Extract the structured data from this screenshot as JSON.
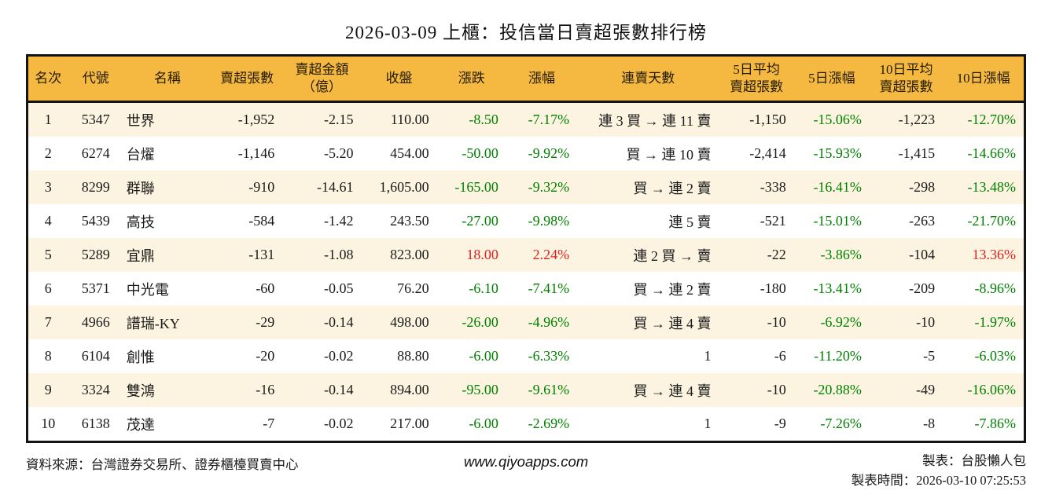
{
  "title": "2026-03-09 上櫃：投信當日賣超張數排行榜",
  "colors": {
    "header_bg": "#F5B942",
    "row_alt_bg": "#FCF4E1",
    "row_bg": "#FFFFFF",
    "up_red": "#E01F1F",
    "down_green": "#008000",
    "border": "#141414"
  },
  "table": {
    "header_labels": [
      "名次",
      "代號",
      "名稱",
      "賣超張數",
      "賣超金額\n（億）",
      "收盤",
      "漲跌",
      "漲幅",
      "連賣天數",
      "5日平均\n賣超張數",
      "5日漲幅",
      "10日平均\n賣超張數",
      "10日漲幅"
    ]
  },
  "chart_data": {
    "type": "table",
    "title": "2026-03-09 上櫃：投信當日賣超張數排行榜",
    "columns": [
      "名次",
      "代號",
      "名稱",
      "賣超張數",
      "賣超金額（億）",
      "收盤",
      "漲跌",
      "漲幅",
      "連賣天數",
      "5日平均賣超張數",
      "5日漲幅",
      "10日平均賣超張數",
      "10日漲幅"
    ],
    "rows": [
      [
        "1",
        "5347",
        "世界",
        "-1,952",
        "-2.15",
        "110.00",
        "-8.50",
        "-7.17%",
        "連 3 買 → 連 11 賣",
        "-1,150",
        "-15.06%",
        "-1,223",
        "-12.70%"
      ],
      [
        "2",
        "6274",
        "台燿",
        "-1,146",
        "-5.20",
        "454.00",
        "-50.00",
        "-9.92%",
        "買 → 連 10 賣",
        "-2,414",
        "-15.93%",
        "-1,415",
        "-14.66%"
      ],
      [
        "3",
        "8299",
        "群聯",
        "-910",
        "-14.61",
        "1,605.00",
        "-165.00",
        "-9.32%",
        "買 → 連 2 賣",
        "-338",
        "-16.41%",
        "-298",
        "-13.48%"
      ],
      [
        "4",
        "5439",
        "高技",
        "-584",
        "-1.42",
        "243.50",
        "-27.00",
        "-9.98%",
        "連 5 賣",
        "-521",
        "-15.01%",
        "-263",
        "-21.70%"
      ],
      [
        "5",
        "5289",
        "宜鼎",
        "-131",
        "-1.08",
        "823.00",
        "18.00",
        "2.24%",
        "連 2 買 → 賣",
        "-22",
        "-3.86%",
        "-104",
        "13.36%"
      ],
      [
        "6",
        "5371",
        "中光電",
        "-60",
        "-0.05",
        "76.20",
        "-6.10",
        "-7.41%",
        "買 → 連 2 賣",
        "-180",
        "-13.41%",
        "-209",
        "-8.96%"
      ],
      [
        "7",
        "4966",
        "譜瑞-KY",
        "-29",
        "-0.14",
        "498.00",
        "-26.00",
        "-4.96%",
        "買 → 連 4 賣",
        "-10",
        "-6.92%",
        "-10",
        "-1.97%"
      ],
      [
        "8",
        "6104",
        "創惟",
        "-20",
        "-0.02",
        "88.80",
        "-6.00",
        "-6.33%",
        "1",
        "-6",
        "-11.20%",
        "-5",
        "-6.03%"
      ],
      [
        "9",
        "3324",
        "雙鴻",
        "-16",
        "-0.14",
        "894.00",
        "-95.00",
        "-9.61%",
        "買 → 連 4 賣",
        "-10",
        "-20.88%",
        "-49",
        "-16.06%"
      ],
      [
        "10",
        "6138",
        "茂達",
        "-7",
        "-0.02",
        "217.00",
        "-6.00",
        "-2.69%",
        "1",
        "-9",
        "-7.26%",
        "-8",
        "-7.86%"
      ]
    ]
  },
  "footer": {
    "source": "資料來源：台灣證券交易所、證券櫃檯買賣中心",
    "website": "www.qiyoapps.com",
    "made_by": "製表：台股懶人包",
    "made_time": "製表時間：2026-03-10 07:25:53"
  }
}
